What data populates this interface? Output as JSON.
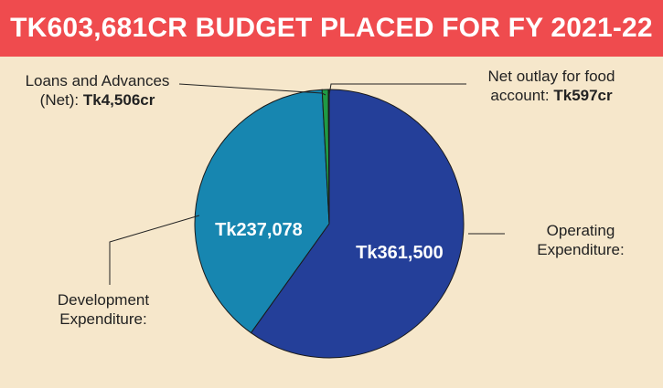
{
  "header": {
    "title": "TK603,681CR BUDGET PLACED FOR FY 2021-22"
  },
  "chart_data": {
    "type": "pie",
    "title": "TK603,681CR BUDGET PLACED FOR FY 2021-22",
    "slices": [
      {
        "name": "Operating Expenditure",
        "value": 361500,
        "color": "#243f99",
        "data_label": "Tk361,500"
      },
      {
        "name": "Development Expenditure",
        "value": 237078,
        "color": "#1786b0",
        "data_label": "Tk237,078"
      },
      {
        "name": "Loans and Advances (Net)",
        "value": 4506,
        "color": "#1f9a44",
        "data_label": ""
      },
      {
        "name": "Net outlay for food account",
        "value": 597,
        "color": "#e5231f",
        "data_label": ""
      }
    ],
    "annotations": {
      "loans": {
        "text_pre": "Loans and Advances",
        "text_line2": "(Net): ",
        "value": "Tk4,506cr"
      },
      "food": {
        "text_pre": "Net outlay for food",
        "text_line2": "account: ",
        "value": "Tk597cr"
      },
      "operating": {
        "line1": "Operating",
        "line2": "Expenditure:"
      },
      "development": {
        "line1": "Development",
        "line2": "Expenditure:"
      }
    }
  }
}
